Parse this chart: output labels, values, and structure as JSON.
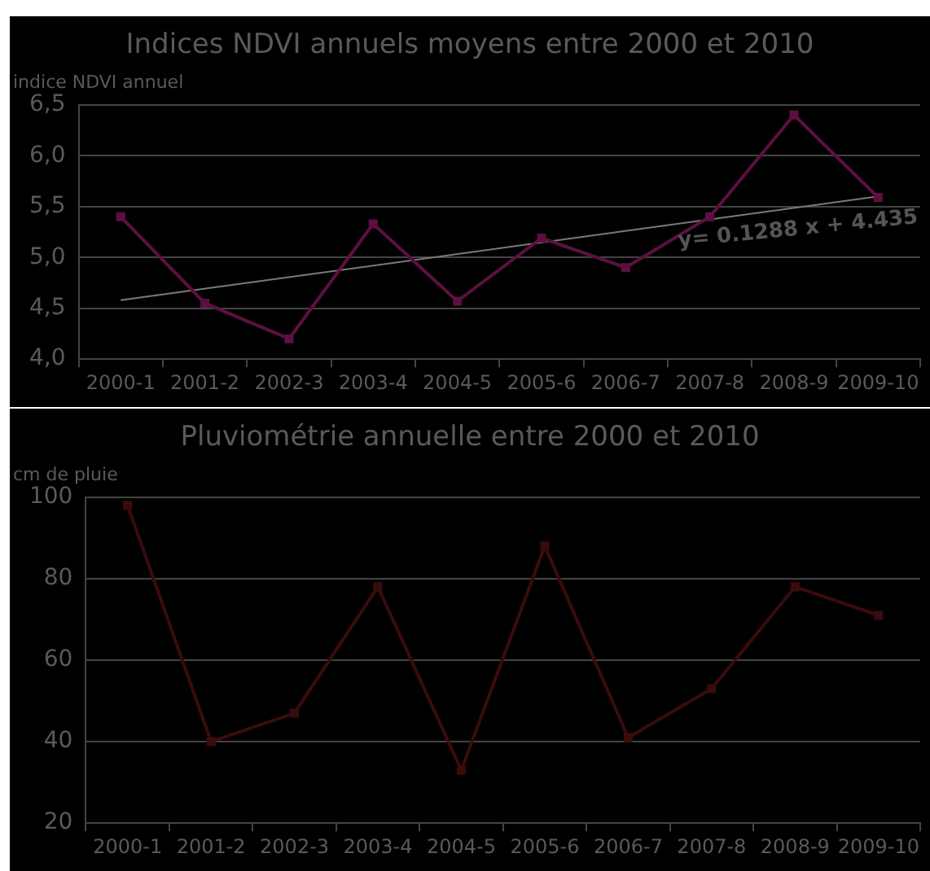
{
  "chart_data": [
    {
      "type": "line",
      "title": "Indices NDVI annuels moyens entre 2000 et 2010",
      "ylabel": "indice NDVI annuel",
      "categories": [
        "2000-1",
        "2001-2",
        "2002-3",
        "2003-4",
        "2004-5",
        "2005-6",
        "2006-7",
        "2007-8",
        "2008-9",
        "2009-10"
      ],
      "series": [
        {
          "color": "#5c1040",
          "values": [
            5.4,
            4.55,
            4.2,
            5.33,
            4.57,
            5.19,
            4.9,
            5.4,
            6.4,
            5.59
          ],
          "marker": "square"
        },
        {
          "type": "line",
          "color": "#7a7a7a",
          "values": [
            4.58,
            null,
            null,
            null,
            null,
            null,
            null,
            null,
            null,
            5.6
          ],
          "marker": "none"
        }
      ],
      "ylim": [
        4.0,
        6.5
      ],
      "yticks": [
        {
          "value": 4.0,
          "label": "4,0"
        },
        {
          "value": 4.5,
          "label": "4,5"
        },
        {
          "value": 5.0,
          "label": "5,0"
        },
        {
          "value": 5.5,
          "label": "5,5"
        },
        {
          "value": 6.0,
          "label": "6,0"
        },
        {
          "value": 6.5,
          "label": "6,5"
        }
      ],
      "grid": "y",
      "annotations": [
        "y= 0.1288 x + 4.435"
      ]
    },
    {
      "type": "line",
      "title": "Pluviométrie annuelle entre 2000 et 2010",
      "ylabel": "cm de pluie",
      "categories": [
        "2000-1",
        "2001-2",
        "2002-3",
        "2003-4",
        "2004-5",
        "2005-6",
        "2006-7",
        "2007-8",
        "2008-9",
        "2009-10"
      ],
      "series": [
        {
          "color": "#3a0c0c",
          "values": [
            98,
            40,
            47,
            78,
            33,
            88,
            41,
            53,
            78,
            71
          ],
          "marker": "square"
        }
      ],
      "ylim": [
        20,
        100
      ],
      "yticks": [
        20,
        40,
        60,
        80,
        100
      ],
      "grid": "y"
    }
  ]
}
